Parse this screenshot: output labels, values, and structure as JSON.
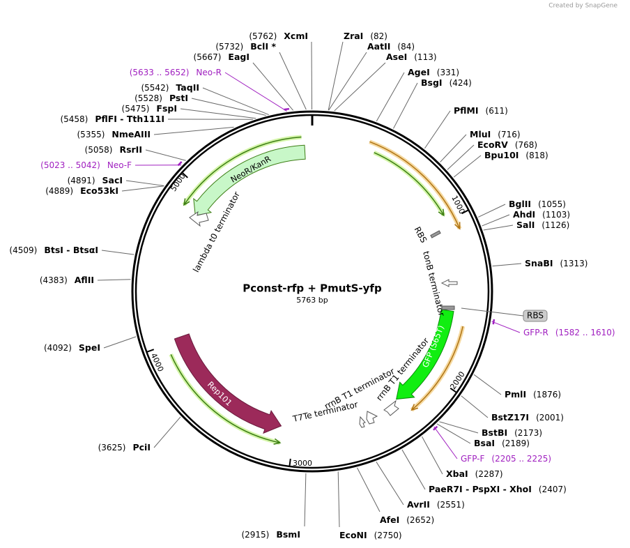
{
  "credit": "Created by SnapGene",
  "title": "Pconst-rfp + PmutS-yfp",
  "length": "5763 bp",
  "sites": [
    {
      "name": "XcmI",
      "position": "(5762)"
    },
    {
      "name": "BclI *",
      "position": "(5732)"
    },
    {
      "name": "EagI",
      "position": "(5667)"
    },
    {
      "name": "TaqII",
      "position": "(5542)"
    },
    {
      "name": "PstI",
      "position": "(5528)"
    },
    {
      "name": "FspI",
      "position": "(5475)"
    },
    {
      "name": "PflFI - Tth111I",
      "position": "(5458)"
    },
    {
      "name": "NmeAIII",
      "position": "(5355)"
    },
    {
      "name": "RsrII",
      "position": "(5058)"
    },
    {
      "name": "SacI",
      "position": "(4891)"
    },
    {
      "name": "Eco53kI",
      "position": "(4889)"
    },
    {
      "name": "BtsI - BtsαI",
      "position": "(4509)"
    },
    {
      "name": "AflII",
      "position": "(4383)"
    },
    {
      "name": "SpeI",
      "position": "(4092)"
    },
    {
      "name": "PciI",
      "position": "(3625)"
    },
    {
      "name": "BsmI",
      "position": "(2915)"
    },
    {
      "name": "EcoNI",
      "position": "(2750)"
    },
    {
      "name": "AfeI",
      "position": "(2652)"
    },
    {
      "name": "AvrII",
      "position": "(2551)"
    },
    {
      "name": "PaeR7I - PspXI - XhoI",
      "position": "(2407)"
    },
    {
      "name": "XbaI",
      "position": "(2287)"
    },
    {
      "name": "BsaI",
      "position": "(2189)"
    },
    {
      "name": "BstBI",
      "position": "(2173)"
    },
    {
      "name": "BstZ17I",
      "position": "(2001)"
    },
    {
      "name": "PmlI",
      "position": "(1876)"
    },
    {
      "name": "SnaBI",
      "position": "(1313)"
    },
    {
      "name": "SalI",
      "position": "(1126)"
    },
    {
      "name": "AhdI",
      "position": "(1103)"
    },
    {
      "name": "BglII",
      "position": "(1055)"
    },
    {
      "name": "Bpu10I",
      "position": "(818)"
    },
    {
      "name": "EcoRV",
      "position": "(768)"
    },
    {
      "name": "MluI",
      "position": "(716)"
    },
    {
      "name": "PflMI",
      "position": "(611)"
    },
    {
      "name": "BsgI",
      "position": "(424)"
    },
    {
      "name": "AgeI",
      "position": "(331)"
    },
    {
      "name": "AseI",
      "position": "(113)"
    },
    {
      "name": "AatII",
      "position": "(84)"
    },
    {
      "name": "ZraI",
      "position": "(82)"
    }
  ],
  "primers": [
    {
      "name": "Neo-R",
      "range": "(5633 .. 5652)"
    },
    {
      "name": "Neo-F",
      "range": "(5023 .. 5042)"
    },
    {
      "name": "GFP-R",
      "range": "(1582 .. 1610)"
    },
    {
      "name": "GFP-F",
      "range": "(2205 .. 2225)"
    }
  ],
  "features": [
    {
      "label": "NeoR/KanR"
    },
    {
      "label": "lambda t0 terminator"
    },
    {
      "label": "RBS"
    },
    {
      "label": "tonB terminator"
    },
    {
      "label": "RBS"
    },
    {
      "label": "GFP (S65T)"
    },
    {
      "label": "rrnB T1 terminator"
    },
    {
      "label": "rrnB T1 terminator"
    },
    {
      "label": "T7Te terminator"
    },
    {
      "label": "Rep101"
    }
  ],
  "ruler": [
    "1000",
    "2000",
    "3000",
    "4000",
    "5000"
  ]
}
